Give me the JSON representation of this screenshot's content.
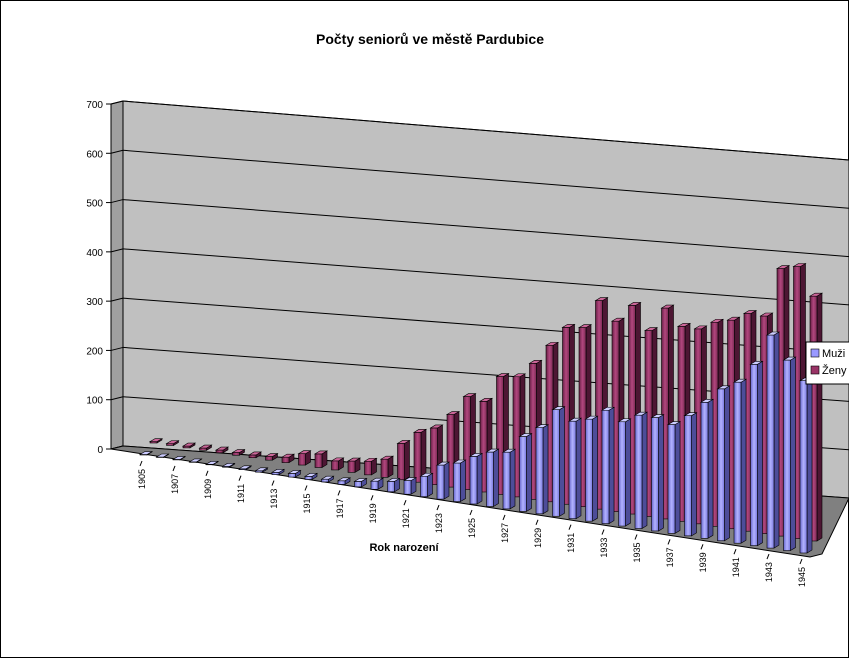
{
  "chart_data": {
    "type": "bar",
    "title": "Počty seniorů ve městě Pardubice",
    "xlabel": "Rok narození",
    "ylabel": "",
    "ylim": [
      0,
      700
    ],
    "yticks": [
      0,
      100,
      200,
      300,
      400,
      500,
      600,
      700
    ],
    "categories": [
      "1905",
      "1906",
      "1907",
      "1908",
      "1909",
      "1910",
      "1911",
      "1912",
      "1913",
      "1914",
      "1915",
      "1916",
      "1917",
      "1918",
      "1919",
      "1920",
      "1921",
      "1922",
      "1923",
      "1924",
      "1925",
      "1926",
      "1927",
      "1928",
      "1929",
      "1930",
      "1931",
      "1932",
      "1933",
      "1934",
      "1935",
      "1936",
      "1937",
      "1938",
      "1939",
      "1940",
      "1941",
      "1942",
      "1943",
      "1944",
      "1945"
    ],
    "tick_labels": [
      "1905",
      "1907",
      "1909",
      "1911",
      "1913",
      "1915",
      "1917",
      "1919",
      "1921",
      "1923",
      "1925",
      "1927",
      "1929",
      "1931",
      "1933",
      "1935",
      "1937",
      "1939",
      "1941",
      "1943",
      "1945"
    ],
    "series": [
      {
        "name": "Muži",
        "color": "#9999ff",
        "values": [
          1,
          1,
          1,
          1,
          1,
          2,
          2,
          3,
          5,
          8,
          7,
          6,
          8,
          12,
          18,
          23,
          30,
          45,
          75,
          85,
          105,
          120,
          125,
          165,
          190,
          235,
          215,
          225,
          250,
          230,
          250,
          250,
          240,
          265,
          300,
          335,
          355,
          400,
          470,
          420,
          380
        ]
      },
      {
        "name": "Ženy",
        "color": "#993366",
        "values": [
          3,
          4,
          4,
          5,
          6,
          6,
          6,
          8,
          12,
          25,
          30,
          20,
          25,
          30,
          40,
          80,
          110,
          125,
          160,
          205,
          200,
          260,
          265,
          300,
          345,
          390,
          395,
          460,
          420,
          460,
          410,
          465,
          430,
          430,
          450,
          460,
          480,
          480,
          590,
          600,
          540
        ]
      }
    ],
    "legend": "right",
    "grid": true
  }
}
